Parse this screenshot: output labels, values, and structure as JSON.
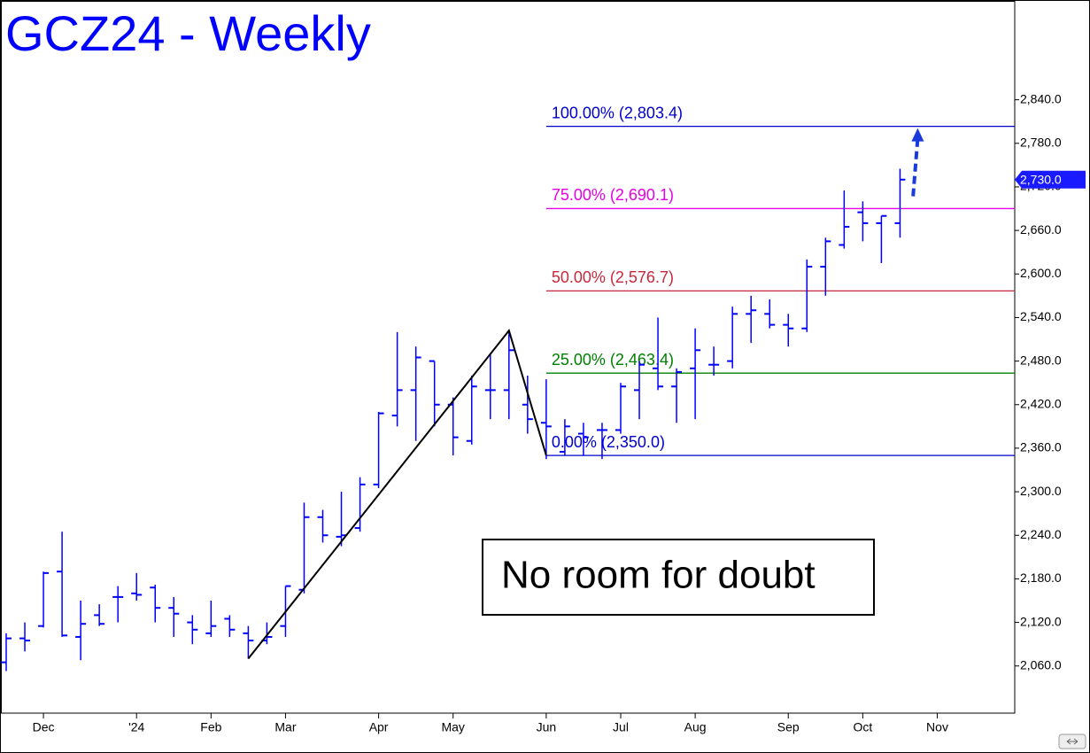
{
  "chart_data": {
    "type": "ohlc",
    "title": "GCZ24 - Weekly",
    "annotation": "No room for doubt",
    "categories": [
      null,
      null,
      "Dec",
      null,
      null,
      null,
      null,
      "'24",
      null,
      null,
      null,
      "Feb",
      null,
      null,
      null,
      "Mar",
      null,
      null,
      null,
      null,
      "Apr",
      null,
      null,
      null,
      "May",
      null,
      null,
      null,
      null,
      "Jun",
      null,
      null,
      null,
      "Jul",
      null,
      null,
      null,
      "Aug",
      null,
      null,
      null,
      null,
      "Sep",
      null,
      null,
      null,
      "Oct",
      null,
      null,
      null,
      "Nov",
      null,
      null,
      null
    ],
    "ohlc": {
      "color": "#0000ff",
      "open": [
        2065,
        2098,
        2115,
        2190,
        2100,
        2130,
        2155,
        2160,
        2168,
        2140,
        2120,
        2105,
        2125,
        2105,
        2095,
        2115,
        2165,
        2265,
        2238,
        2250,
        2310,
        2405,
        2440,
        2480,
        2420,
        2370,
        2440,
        2440,
        2420,
        2395,
        2355,
        2380,
        2385,
        2385,
        2440,
        2470,
        2445,
        2470,
        2475,
        2480,
        2545,
        2545,
        2530,
        2525,
        2610,
        2640,
        2685,
        2670,
        2670,
        null,
        null,
        null,
        null,
        null
      ],
      "high": [
        2105,
        2120,
        2190,
        2245,
        2150,
        2145,
        2170,
        2188,
        2172,
        2155,
        2130,
        2150,
        2130,
        2115,
        2120,
        2170,
        2285,
        2275,
        2300,
        2320,
        2410,
        2520,
        2500,
        2480,
        2430,
        2460,
        2490,
        2520,
        2460,
        2455,
        2400,
        2395,
        2395,
        2450,
        2480,
        2540,
        2470,
        2525,
        2500,
        2555,
        2570,
        2565,
        2545,
        2620,
        2650,
        2715,
        2700,
        2680,
        2745,
        null,
        null,
        null,
        null,
        null
      ],
      "low": [
        2053,
        2080,
        2113,
        2100,
        2068,
        2115,
        2120,
        2150,
        2120,
        2100,
        2090,
        2100,
        2100,
        2070,
        2090,
        2100,
        2160,
        2230,
        2225,
        2245,
        2305,
        2390,
        2370,
        2390,
        2350,
        2365,
        2400,
        2400,
        2380,
        2345,
        2350,
        2350,
        2345,
        2380,
        2400,
        2440,
        2395,
        2400,
        2460,
        2470,
        2505,
        2525,
        2500,
        2520,
        2570,
        2635,
        2645,
        2615,
        2650,
        null,
        null,
        null,
        null,
        null
      ],
      "close": [
        2098,
        2095,
        2188,
        2102,
        2118,
        2118,
        2155,
        2158,
        2140,
        2132,
        2110,
        2115,
        2110,
        2095,
        2100,
        2170,
        2265,
        2240,
        2240,
        2310,
        2408,
        2440,
        2485,
        2420,
        2375,
        2445,
        2440,
        2495,
        2400,
        2390,
        2390,
        2375,
        2385,
        2445,
        2475,
        2445,
        2465,
        2495,
        2475,
        2545,
        2550,
        2530,
        2525,
        2610,
        2645,
        2665,
        2670,
        2680,
        2730,
        null,
        null,
        null,
        null,
        null
      ]
    },
    "ylim": [
      1995,
      2975
    ],
    "yticks": [
      {
        "value": 2060,
        "label": "2,060.0"
      },
      {
        "value": 2120,
        "label": "2,120.0"
      },
      {
        "value": 2180,
        "label": "2,180.0"
      },
      {
        "value": 2240,
        "label": "2,240.0"
      },
      {
        "value": 2300,
        "label": "2,300.0"
      },
      {
        "value": 2360,
        "label": "2,360.0"
      },
      {
        "value": 2420,
        "label": "2,420.0"
      },
      {
        "value": 2480,
        "label": "2,480.0"
      },
      {
        "value": 2540,
        "label": "2,540.0"
      },
      {
        "value": 2600,
        "label": "2,600.0"
      },
      {
        "value": 2660,
        "label": "2,660.0"
      },
      {
        "value": 2720,
        "label": "2,720.0"
      },
      {
        "value": 2780,
        "label": "2,780.0"
      },
      {
        "value": 2840,
        "label": "2,840.0"
      }
    ],
    "last_price": {
      "value": 2730,
      "label": "2,730.0",
      "color": "#1a1aff"
    },
    "levels": [
      {
        "value": 2803.4,
        "label": "100.00% (2,803.4)",
        "color": "#0000cc"
      },
      {
        "value": 2690.1,
        "label": "75.00% (2,690.1)",
        "color": "#e600e6"
      },
      {
        "value": 2576.7,
        "label": "50.00% (2,576.7)",
        "color": "#c8283c"
      },
      {
        "value": 2463.4,
        "label": "25.00% (2,463.4)",
        "color": "#008000"
      },
      {
        "value": 2350.0,
        "label": "0.00% (2,350.0)",
        "color": "#0000cc"
      }
    ],
    "pattern": {
      "x": [
        13,
        27,
        29
      ],
      "y": [
        2070,
        2522,
        2350
      ],
      "color": "#000000"
    },
    "arrow": {
      "x": [
        48.7,
        48.95
      ],
      "y": [
        2707,
        2801
      ],
      "color": "#1a3adb"
    }
  }
}
